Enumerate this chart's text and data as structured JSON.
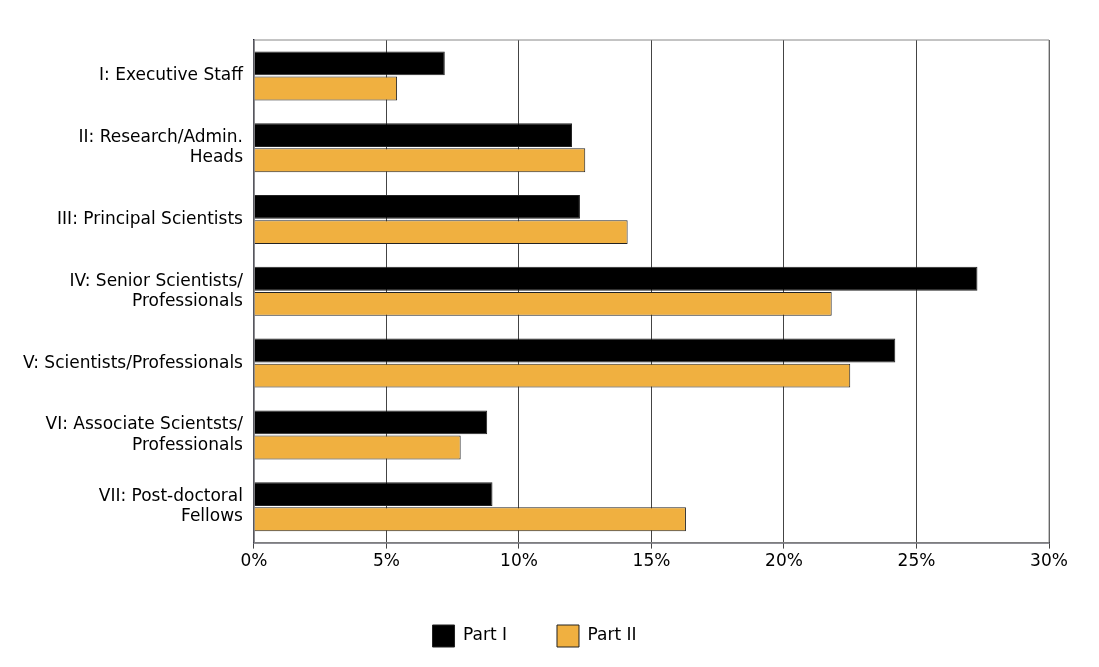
{
  "chart_data": {
    "type": "bar",
    "orientation": "horizontal",
    "categories": [
      "I: Executive Staff",
      "II: Research/Admin.\nHeads",
      "III: Principal Scientists",
      "IV: Senior Scientists/\nProfessionals",
      "V: Scientists/Professionals",
      "VI: Associate Scientsts/\nProfessionals",
      "VII: Post-doctoral\nFellows"
    ],
    "series": [
      {
        "name": "Part I",
        "color": "#000000",
        "values": [
          7.2,
          12.0,
          12.3,
          27.3,
          24.2,
          8.8,
          9.0
        ]
      },
      {
        "name": "Part II",
        "color": "#f0b040",
        "values": [
          5.4,
          12.5,
          14.1,
          21.8,
          22.5,
          7.8,
          16.3
        ]
      }
    ],
    "xlim": [
      0,
      30
    ],
    "xticks": [
      {
        "value": 0,
        "label": "0%"
      },
      {
        "value": 5,
        "label": "5%"
      },
      {
        "value": 10,
        "label": "10%"
      },
      {
        "value": 15,
        "label": "15%"
      },
      {
        "value": 20,
        "label": "20%"
      },
      {
        "value": 25,
        "label": "25%"
      },
      {
        "value": 30,
        "label": "30%"
      }
    ],
    "grid": "x",
    "legend": "bottom"
  }
}
